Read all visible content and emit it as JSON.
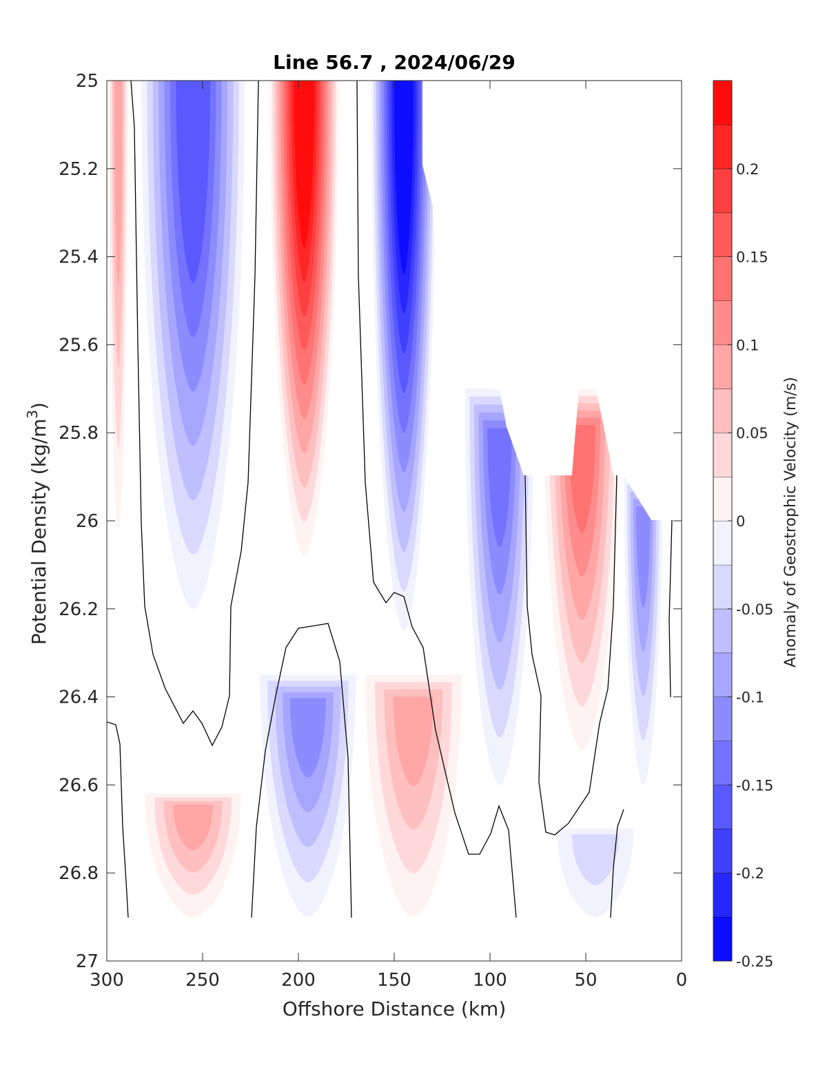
{
  "chart_data": {
    "type": "heatmap",
    "subtype": "filled contour section",
    "title": "Line 56.7 , 2024/06/29",
    "xlabel": "Offshore Distance (km)",
    "ylabel_main": "Potential Density (kg/m",
    "ylabel_sup": "3",
    "ylabel_close": ")",
    "colorbar_label": "Anomaly of Geostrophic Velocity (m/s)",
    "xlim": [
      300,
      0
    ],
    "x_reversed": true,
    "ylim": [
      25,
      27
    ],
    "y_reversed": true,
    "x_ticks": [
      300,
      250,
      200,
      150,
      100,
      50,
      0
    ],
    "y_ticks": [
      25,
      25.2,
      25.4,
      25.6,
      25.8,
      26,
      26.2,
      26.4,
      26.6,
      26.8,
      27
    ],
    "y_tick_labels": [
      "25",
      "25.2",
      "25.4",
      "25.6",
      "25.8",
      "26",
      "26.2",
      "26.4",
      "26.6",
      "26.8",
      "27"
    ],
    "colorbar_range": [
      -0.25,
      0.25
    ],
    "colorbar_ticks": [
      -0.25,
      -0.2,
      -0.15,
      -0.1,
      -0.05,
      0,
      0.05,
      0.1,
      0.15,
      0.2
    ],
    "colorbar_tick_labels": [
      "-0.25",
      "-0.2",
      "-0.15",
      "-0.1",
      "-0.05",
      "0",
      "0.05",
      "0.1",
      "0.15",
      "0.2"
    ],
    "colorbar_levels": [
      -0.25,
      -0.225,
      -0.2,
      -0.175,
      -0.15,
      -0.125,
      -0.1,
      -0.075,
      -0.05,
      -0.025,
      0,
      0.025,
      0.05,
      0.075,
      0.1,
      0.125,
      0.15,
      0.175,
      0.2,
      0.225,
      0.25
    ],
    "colormap": {
      "negative": "#0000ff",
      "zero": "#ffffff",
      "positive": "#ff0000"
    },
    "features": [
      {
        "label": "positive core near 200 km",
        "x_center": 197,
        "x_halfwidth": 18,
        "y_top": 25,
        "y_bottom": 26.08,
        "peak": 0.25
      },
      {
        "label": "negative core near 255 km",
        "x_center": 255,
        "x_halfwidth": 27,
        "y_top": 25,
        "y_bottom": 26.2,
        "peak": -0.17
      },
      {
        "label": "negative near 145 km",
        "x_center": 145,
        "x_halfwidth": 17,
        "y_top": 25,
        "y_bottom": 26.25,
        "peak": -0.25
      },
      {
        "label": "positive near 295 km",
        "x_center": 294,
        "x_halfwidth": 5,
        "y_top": 25,
        "y_bottom": 26.02,
        "peak": 0.1
      },
      {
        "label": "negative near 95 km",
        "x_center": 95,
        "x_halfwidth": 18,
        "y_top": 25.7,
        "y_bottom": 26.6,
        "peak": -0.16
      },
      {
        "label": "positive near 50 km",
        "x_center": 52,
        "x_halfwidth": 20,
        "y_top": 25.7,
        "y_bottom": 26.52,
        "peak": 0.14
      },
      {
        "label": "negative near 20 km",
        "x_center": 20,
        "x_halfwidth": 10,
        "y_top": 25.9,
        "y_bottom": 26.6,
        "peak": -0.13
      },
      {
        "label": "positive deep near 255 km",
        "x_center": 255,
        "x_halfwidth": 25,
        "y_top": 26.62,
        "y_bottom": 26.9,
        "peak": 0.1
      },
      {
        "label": "negative deep near 195 km",
        "x_center": 195,
        "x_halfwidth": 25,
        "y_top": 26.35,
        "y_bottom": 26.9,
        "peak": -0.13
      },
      {
        "label": "positive deep near 140 km",
        "x_center": 140,
        "x_halfwidth": 25,
        "y_top": 26.35,
        "y_bottom": 26.9,
        "peak": 0.1
      },
      {
        "label": "negative deep near 45 km",
        "x_center": 45,
        "x_halfwidth": 20,
        "y_top": 26.7,
        "y_bottom": 26.9,
        "peak": -0.05
      }
    ]
  }
}
